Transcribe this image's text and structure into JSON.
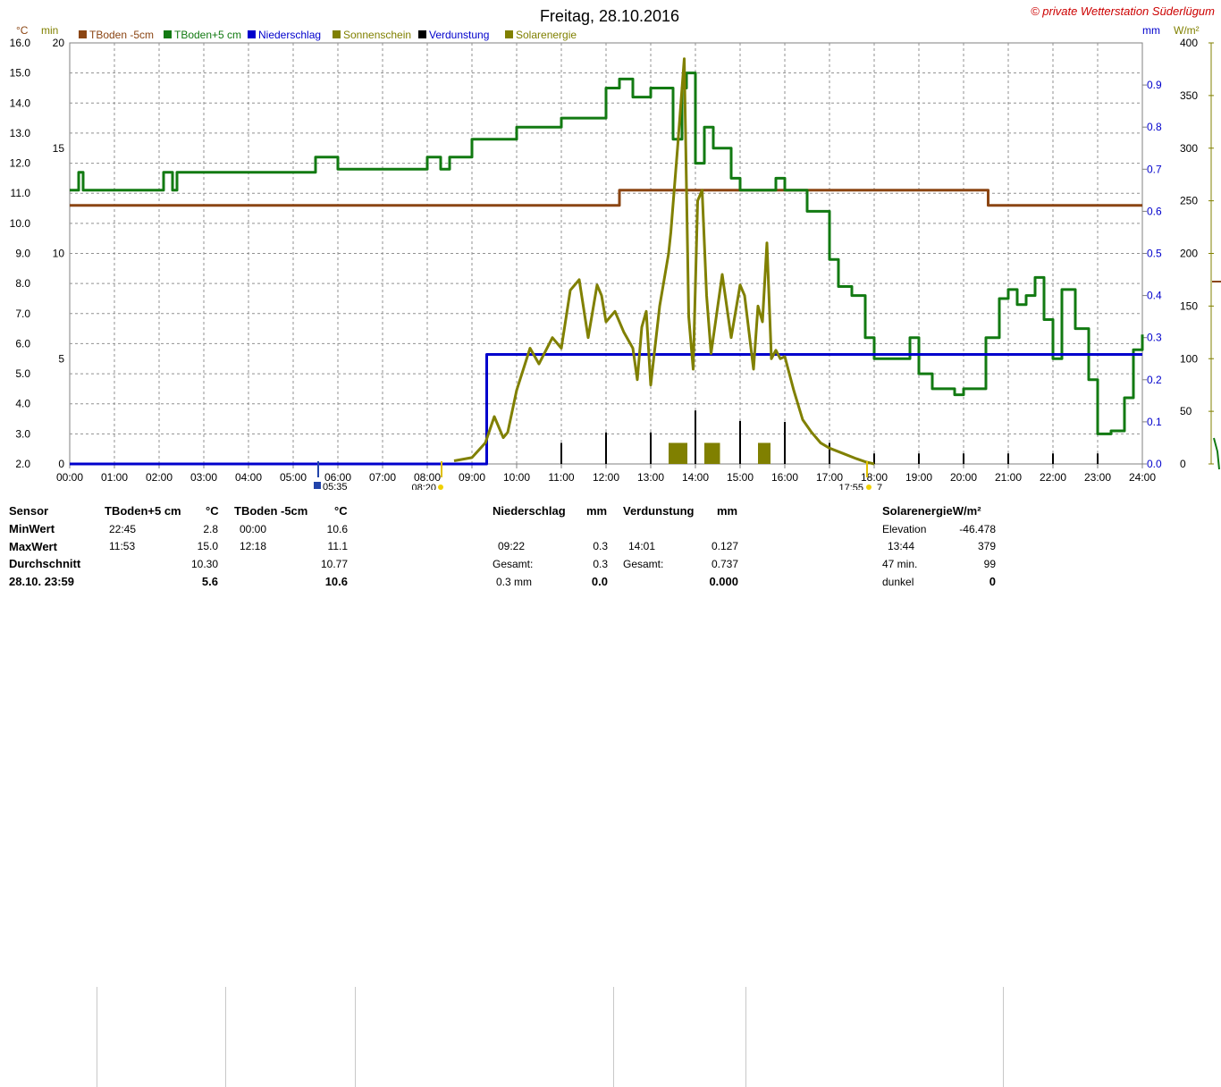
{
  "header": {
    "title": "Freitag, 28.10.2016",
    "copyright": "© private Wetterstation Süderlügum"
  },
  "axis_units": {
    "celsius": "°C",
    "min": "min",
    "mm": "mm",
    "wm2": "W/m²"
  },
  "legend": [
    {
      "label": "TBoden -5cm",
      "color": "#8b4513"
    },
    {
      "label": "TBoden+5 cm",
      "color": "#127a12"
    },
    {
      "label": "Niederschlag",
      "color": "#0000cc"
    },
    {
      "label": "Sonnenschein",
      "color": "#808000"
    },
    {
      "label": "Verdunstung",
      "color": "#000000"
    },
    {
      "label": "Solarenergie",
      "color": "#808000"
    }
  ],
  "sun_markers": {
    "dawn": "05:35",
    "sunrise": "08:20",
    "sunset": "17:55",
    "dusk": "7"
  },
  "stats": {
    "sensor_header": "Sensor",
    "row_labels": [
      "MinWert",
      "MaxWert",
      "Durchschnitt",
      "28.10. 23:59"
    ],
    "t5": {
      "header": "TBoden+5 cm",
      "unit": "°C",
      "min_time": "22:45",
      "min": "2.8",
      "max_time": "11:53",
      "max": "15.0",
      "avg": "10.30",
      "current": "5.6"
    },
    "tm5": {
      "header": "TBoden -5cm",
      "unit": "°C",
      "min_time": "00:00",
      "min": "10.6",
      "max_time": "12:18",
      "max": "11.1",
      "avg": "10.77",
      "current": "10.6"
    },
    "rain": {
      "header": "Niederschlag",
      "unit": "mm",
      "max_time": "09:22",
      "max": "0.3",
      "total_label": "Gesamt:",
      "total": "0.3",
      "footer_label": "0.3 mm",
      "footer": "0.0"
    },
    "evap": {
      "header": "Verdunstung",
      "unit": "mm",
      "max_time": "14:01",
      "max": "0.127",
      "total_label": "Gesamt:",
      "total": "0.737",
      "footer": "0.000"
    },
    "solar": {
      "header": "SolarenergieW/m²",
      "elev_label": "Elevation",
      "elev": "-46.478",
      "max_time": "13:44",
      "max": "379",
      "min_label": "47 min.",
      "min_val": "99",
      "dark_label": "dunkel",
      "dark": "0"
    }
  },
  "chart_data": {
    "type": "line",
    "title": "Freitag, 28.10.2016",
    "x_ticks": [
      "00:00",
      "01:00",
      "02:00",
      "03:00",
      "04:00",
      "05:00",
      "06:00",
      "07:00",
      "08:00",
      "09:00",
      "10:00",
      "11:00",
      "12:00",
      "13:00",
      "14:00",
      "15:00",
      "16:00",
      "17:00",
      "18:00",
      "19:00",
      "20:00",
      "21:00",
      "22:00",
      "23:00",
      "24:00"
    ],
    "axes": {
      "celsius": {
        "range": [
          2.0,
          16.0
        ],
        "ticks": [
          "2.0",
          "3.0",
          "4.0",
          "5.0",
          "6.0",
          "7.0",
          "8.0",
          "9.0",
          "10.0",
          "11.0",
          "12.0",
          "13.0",
          "14.0",
          "15.0",
          "16.0"
        ]
      },
      "minutes": {
        "range": [
          0,
          20
        ],
        "ticks": [
          "0",
          "5",
          "10",
          "15",
          "20"
        ]
      },
      "mm": {
        "range": [
          0.0,
          1.0
        ],
        "ticks": [
          "0.0",
          "0.1",
          "0.2",
          "0.3",
          "0.4",
          "0.5",
          "0.6",
          "0.7",
          "0.8",
          "0.9"
        ]
      },
      "wm2": {
        "range": [
          0,
          400
        ],
        "ticks": [
          "0",
          "50",
          "100",
          "150",
          "200",
          "250",
          "300",
          "350",
          "400"
        ]
      }
    },
    "grid": true,
    "series": [
      {
        "name": "TBoden -5cm",
        "axis": "celsius",
        "color": "#8b4513",
        "x": [
          0,
          12.3,
          12.3,
          20.55,
          20.55,
          24
        ],
        "y": [
          10.6,
          10.6,
          11.1,
          11.1,
          10.6,
          10.6
        ]
      },
      {
        "name": "TBoden+5 cm",
        "axis": "celsius",
        "color": "#127a12",
        "x": [
          0,
          0.15,
          0.2,
          0.3,
          2,
          2.1,
          2.3,
          2.4,
          5,
          5.5,
          6,
          6.5,
          7,
          8,
          8.3,
          8.5,
          9,
          9,
          9.5,
          10,
          10.5,
          11,
          11.5,
          12,
          12.3,
          12.6,
          13,
          13.5,
          13.7,
          13.8,
          14,
          14.2,
          14.4,
          14.8,
          15,
          15.5,
          15.8,
          16,
          16.5,
          17,
          17.2,
          17.5,
          17.8,
          18,
          18.5,
          18.8,
          19,
          19.3,
          19.5,
          19.8,
          20,
          20.5,
          20.8,
          21,
          21.2,
          21.4,
          21.6,
          21.8,
          22,
          22.2,
          22.5,
          22.8,
          23,
          23.3,
          23.6,
          23.8,
          24
        ],
        "y": [
          11.1,
          11.1,
          11.7,
          11.1,
          11.1,
          11.7,
          11.1,
          11.7,
          11.7,
          12.2,
          11.8,
          11.8,
          11.8,
          12.2,
          11.8,
          12.2,
          12.2,
          12.8,
          12.8,
          13.2,
          13.2,
          13.5,
          13.5,
          14.5,
          14.8,
          14.2,
          14.5,
          12.8,
          14.5,
          15.0,
          12.0,
          13.2,
          12.5,
          11.5,
          11.1,
          11.1,
          11.5,
          11.1,
          10.4,
          8.8,
          7.9,
          7.6,
          6.2,
          5.5,
          5.5,
          6.2,
          5.0,
          4.5,
          4.5,
          4.3,
          4.5,
          6.2,
          7.5,
          7.8,
          7.3,
          7.6,
          8.2,
          6.8,
          5.5,
          7.8,
          6.5,
          4.8,
          3.0,
          3.1,
          4.2,
          5.8,
          6.3
        ]
      },
      {
        "name": "Niederschlag",
        "axis": "mm",
        "color": "#0000cc",
        "x": [
          0,
          9.33,
          9.33,
          24
        ],
        "y": [
          0.0,
          0.0,
          0.26,
          0.26
        ]
      },
      {
        "name": "Solarenergie",
        "axis": "wm2",
        "color": "#808000",
        "x": [
          8.6,
          9.0,
          9.3,
          9.5,
          9.7,
          9.8,
          10.0,
          10.3,
          10.5,
          10.8,
          11.0,
          11.2,
          11.4,
          11.6,
          11.8,
          11.9,
          12.0,
          12.2,
          12.4,
          12.6,
          12.7,
          12.8,
          12.9,
          13.0,
          13.2,
          13.4,
          13.45,
          13.6,
          13.75,
          13.85,
          13.95,
          14.05,
          14.15,
          14.25,
          14.35,
          14.5,
          14.6,
          14.7,
          14.8,
          15.0,
          15.1,
          15.3,
          15.4,
          15.5,
          15.6,
          15.7,
          15.8,
          15.9,
          16.0,
          16.2,
          16.4,
          16.6,
          16.8,
          17.0,
          17.3,
          17.6,
          17.8,
          18.0
        ],
        "y": [
          3,
          6,
          20,
          45,
          25,
          30,
          70,
          110,
          95,
          120,
          110,
          165,
          175,
          120,
          170,
          160,
          135,
          145,
          125,
          110,
          80,
          130,
          145,
          75,
          150,
          200,
          220,
          300,
          385,
          140,
          90,
          250,
          260,
          160,
          105,
          150,
          180,
          150,
          120,
          170,
          160,
          90,
          150,
          135,
          210,
          100,
          108,
          100,
          102,
          70,
          42,
          30,
          20,
          15,
          10,
          5,
          2,
          0
        ]
      }
    ],
    "bars": [
      {
        "name": "Verdunstung",
        "axis": "mm",
        "color": "#000000",
        "x": [
          11.0,
          12.0,
          13.0,
          14.0,
          15.0,
          16.0,
          17.0,
          18.0,
          19.0,
          20.0,
          21.0,
          22.0,
          23.0
        ],
        "y": [
          0.05,
          0.075,
          0.075,
          0.127,
          0.102,
          0.1,
          0.05,
          0.025,
          0.025,
          0.025,
          0.025,
          0.025,
          0.025
        ]
      },
      {
        "name": "Sonnenschein",
        "axis": "minutes",
        "color": "#808000",
        "ranges": [
          [
            13.4,
            13.82
          ],
          [
            14.2,
            14.55
          ],
          [
            15.4,
            15.68
          ]
        ],
        "minutes": 1
      }
    ]
  }
}
